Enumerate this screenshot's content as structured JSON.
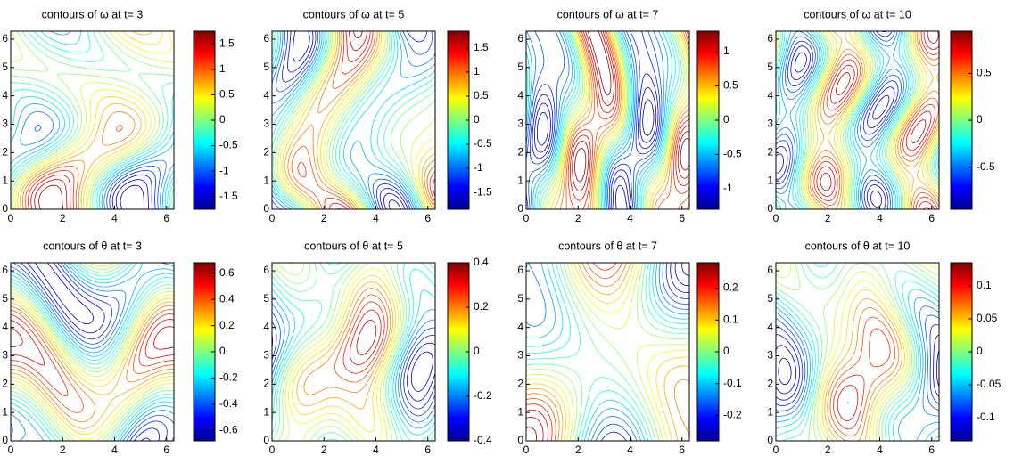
{
  "chart_data": [
    {
      "type": "contour",
      "title": "contours of ω at t= 3",
      "colormap": "jet",
      "xlim": [
        0,
        6.2832
      ],
      "ylim": [
        0,
        6.2832
      ],
      "xticks": [
        0,
        2,
        4,
        6
      ],
      "yticks": [
        0,
        1,
        2,
        3,
        4,
        5,
        6
      ],
      "clim": [
        -1.75,
        1.75
      ],
      "cticks": [
        -1.5,
        -1,
        -0.5,
        0,
        0.5,
        1,
        1.5
      ]
    },
    {
      "type": "contour",
      "title": "contours of ω at t= 5",
      "colormap": "jet",
      "xlim": [
        0,
        6.2832
      ],
      "ylim": [
        0,
        6.2832
      ],
      "xticks": [
        0,
        2,
        4,
        6
      ],
      "yticks": [
        0,
        1,
        2,
        3,
        4,
        5,
        6
      ],
      "clim": [
        -1.85,
        1.85
      ],
      "cticks": [
        -1.5,
        -1,
        -0.5,
        0,
        0.5,
        1,
        1.5
      ]
    },
    {
      "type": "contour",
      "title": "contours of ω at t= 7",
      "colormap": "jet",
      "xlim": [
        0,
        6.2832
      ],
      "ylim": [
        0,
        6.2832
      ],
      "xticks": [
        0,
        2,
        4,
        6
      ],
      "yticks": [
        0,
        1,
        2,
        3,
        4,
        5,
        6
      ],
      "clim": [
        -1.3,
        1.3
      ],
      "cticks": [
        -1,
        -0.5,
        0,
        0.5,
        1
      ]
    },
    {
      "type": "contour",
      "title": "contours of ω at t= 10",
      "colormap": "jet",
      "xlim": [
        0,
        6.2832
      ],
      "ylim": [
        0,
        6.2832
      ],
      "xticks": [
        0,
        2,
        4,
        6
      ],
      "yticks": [
        0,
        1,
        2,
        3,
        4,
        5,
        6
      ],
      "clim": [
        -0.95,
        0.95
      ],
      "cticks": [
        -0.5,
        0,
        0.5
      ]
    },
    {
      "type": "contour",
      "title": "contours of θ at t= 3",
      "colormap": "jet",
      "xlim": [
        0,
        6.2832
      ],
      "ylim": [
        0,
        6.2832
      ],
      "xticks": [
        0,
        2,
        4,
        6
      ],
      "yticks": [
        0,
        1,
        2,
        3,
        4,
        5,
        6
      ],
      "clim": [
        -0.68,
        0.68
      ],
      "cticks": [
        -0.6,
        -0.4,
        -0.2,
        0,
        0.2,
        0.4,
        0.6
      ]
    },
    {
      "type": "contour",
      "title": "contours of θ at t= 5",
      "colormap": "jet",
      "xlim": [
        0,
        6.2832
      ],
      "ylim": [
        0,
        6.2832
      ],
      "xticks": [
        0,
        2,
        4,
        6
      ],
      "yticks": [
        0,
        1,
        2,
        3,
        4,
        5,
        6
      ],
      "clim": [
        -0.4,
        0.4
      ],
      "cticks": [
        -0.4,
        -0.2,
        0,
        0.2,
        0.4
      ]
    },
    {
      "type": "contour",
      "title": "contours of θ at t= 7",
      "colormap": "jet",
      "xlim": [
        0,
        6.2832
      ],
      "ylim": [
        0,
        6.2832
      ],
      "xticks": [
        0,
        2,
        4,
        6
      ],
      "yticks": [
        0,
        1,
        2,
        3,
        4,
        5,
        6
      ],
      "clim": [
        -0.28,
        0.28
      ],
      "cticks": [
        -0.2,
        -0.1,
        0,
        0.1,
        0.2
      ]
    },
    {
      "type": "contour",
      "title": "contours of θ at t= 10",
      "colormap": "jet",
      "xlim": [
        0,
        6.2832
      ],
      "ylim": [
        0,
        6.2832
      ],
      "xticks": [
        0,
        2,
        4,
        6
      ],
      "yticks": [
        0,
        1,
        2,
        3,
        4,
        5,
        6
      ],
      "clim": [
        -0.135,
        0.135
      ],
      "cticks": [
        -0.1,
        -0.05,
        0,
        0.05,
        0.1
      ]
    }
  ]
}
